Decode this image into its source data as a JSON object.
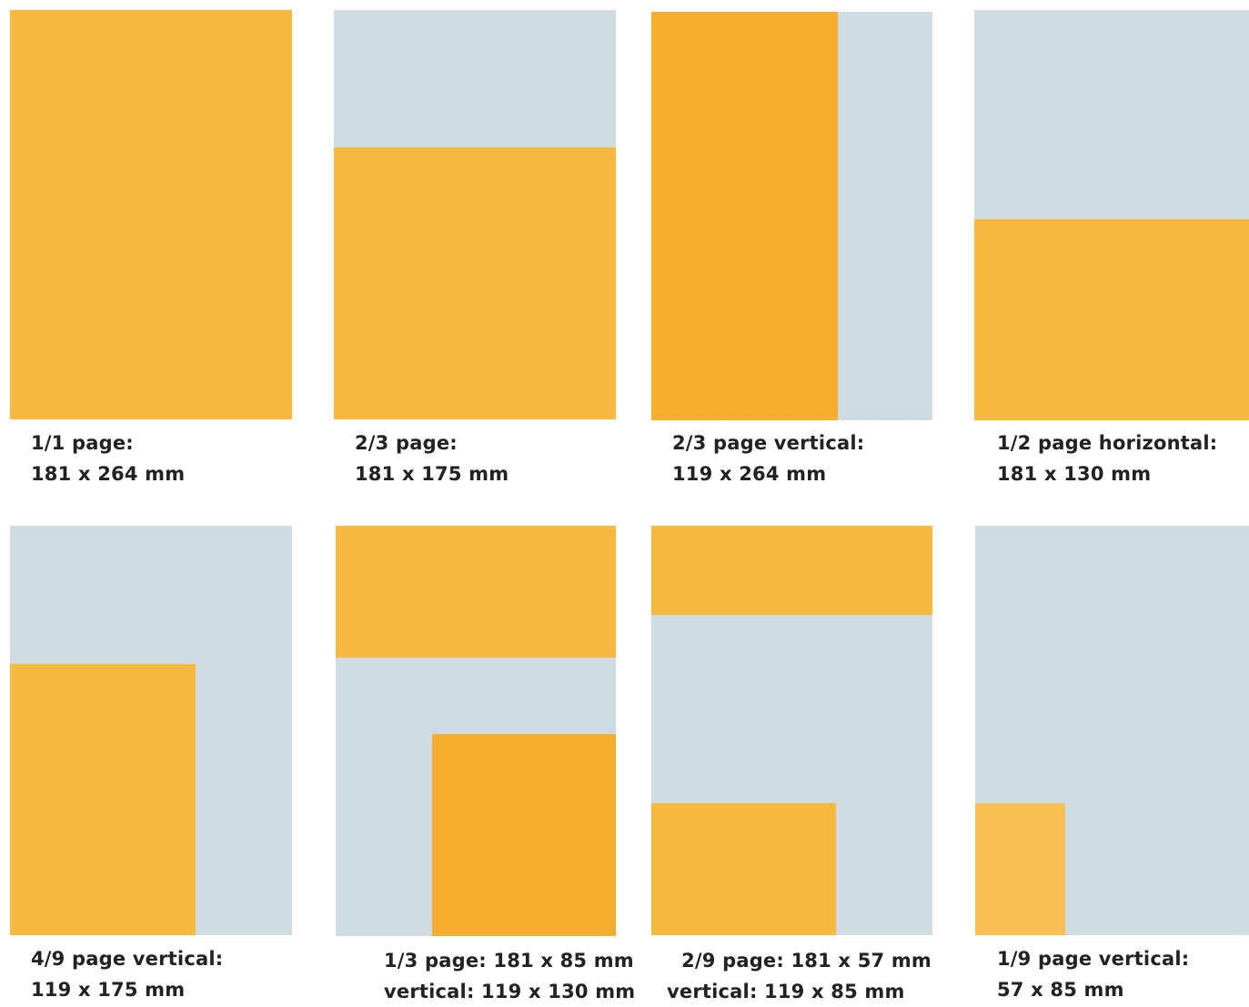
{
  "colors": {
    "ad_fill": "#f8b93f",
    "page_fill": "#cfdce4",
    "text": "#222222"
  },
  "formats": [
    {
      "line1": "1/1 page:",
      "line2": "181 x 264 mm"
    },
    {
      "line1": "2/3 page:",
      "line2": "181 x 175 mm"
    },
    {
      "line1": "2/3 page vertical:",
      "line2": "119 x 264 mm"
    },
    {
      "line1": "1/2 page horizontal:",
      "line2": "181 x 130 mm"
    },
    {
      "line1": "4/9 page vertical:",
      "line2": "119 x 175 mm"
    },
    {
      "line1": "1/3 page: 181 x 85 mm",
      "line2": "vertical: 119 x 130 mm"
    },
    {
      "line1": "2/9 page: 181 x 57 mm",
      "line2": "vertical: 119 x 85 mm"
    },
    {
      "line1": "1/9 page vertical:",
      "line2": "57 x 85 mm"
    }
  ]
}
